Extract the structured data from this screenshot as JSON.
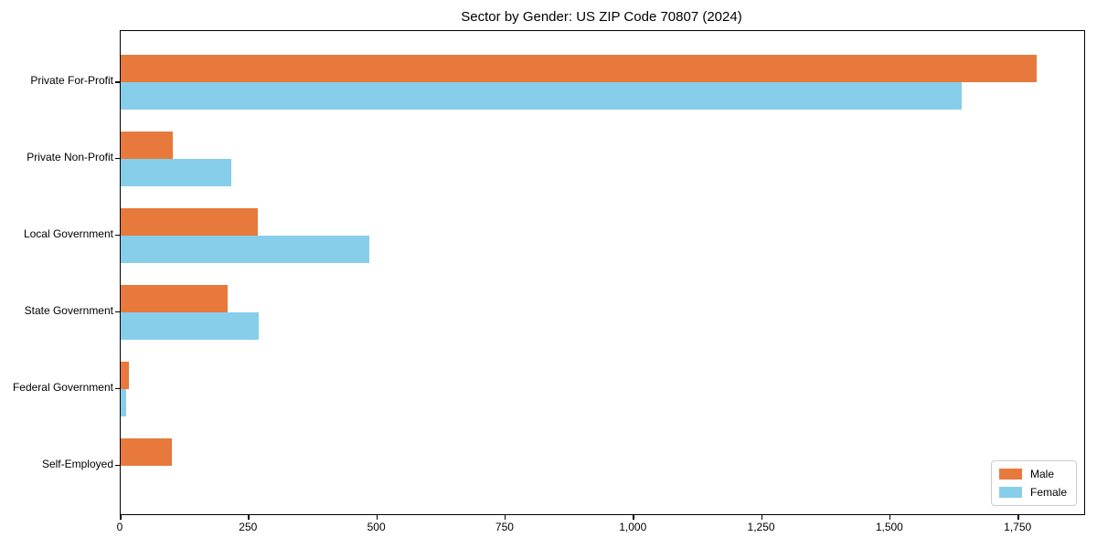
{
  "chart_data": {
    "type": "bar",
    "orientation": "horizontal",
    "title": "Sector by Gender: US ZIP Code 70807 (2024)",
    "categories": [
      "Private For-Profit",
      "Private Non-Profit",
      "Local Government",
      "State Government",
      "Federal Government",
      "Self-Employed"
    ],
    "series": [
      {
        "name": "Male",
        "color": "#e8793c",
        "values": [
          1785,
          102,
          267,
          209,
          16,
          100
        ]
      },
      {
        "name": "Female",
        "color": "#87ceeb",
        "values": [
          1640,
          215,
          485,
          269,
          11,
          0
        ]
      }
    ],
    "xlabel": "",
    "ylabel": "",
    "xlim": [
      0,
      1878
    ],
    "x_ticks": [
      0,
      250,
      500,
      750,
      1000,
      1250,
      1500,
      1750
    ],
    "x_tick_labels": [
      "0",
      "250",
      "500",
      "750",
      "1,000",
      "1,250",
      "1,500",
      "1,750"
    ],
    "grid": false,
    "legend_position": "lower right",
    "colors": {
      "background": "#ffffff",
      "axis": "#000000",
      "legend_border": "#cccccc"
    }
  }
}
